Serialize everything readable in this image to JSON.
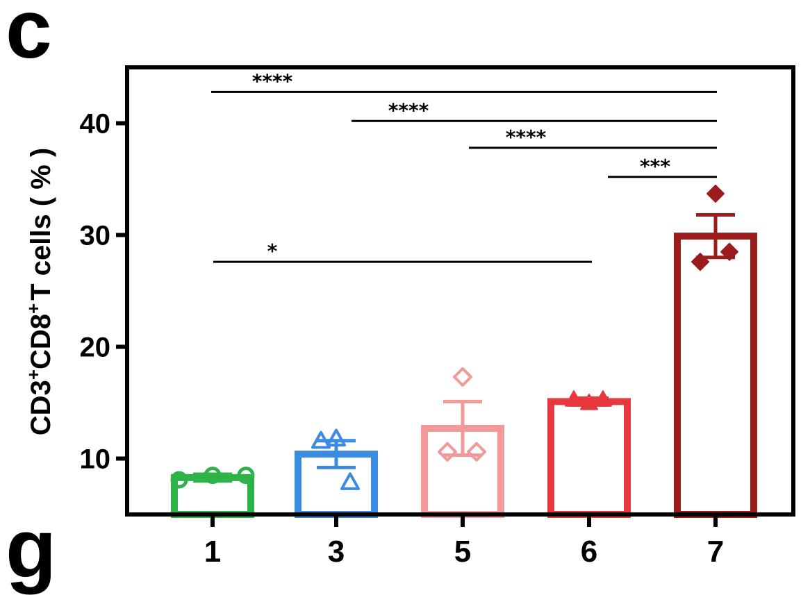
{
  "panel_labels": {
    "main": "c",
    "next": "g"
  },
  "chart_data": {
    "type": "bar",
    "categories": [
      "1",
      "3",
      "5",
      "6",
      "7"
    ],
    "values": [
      8.3,
      10.4,
      12.7,
      15.1,
      29.9
    ],
    "errors": [
      0.3,
      1.2,
      2.4,
      0.3,
      1.9
    ],
    "points": [
      [
        8.1,
        8.5,
        8.5
      ],
      [
        11.8,
        11.6,
        7.9
      ],
      [
        17.3,
        10.6,
        10.6
      ],
      [
        15.0,
        15.3,
        15.3
      ],
      [
        33.7,
        27.6,
        28.5
      ]
    ],
    "markers": [
      "circle",
      "triangle",
      "diamond-open",
      "triangle-filled",
      "diamond-filled"
    ],
    "colors": [
      "#2db34a",
      "#3b8be0",
      "#f29a9a",
      "#e8383d",
      "#9b1c1c"
    ],
    "ylabel": {
      "prefix": "CD3",
      "sup1": "+",
      "middle": "CD8",
      "sup2": "+",
      "suffix": "T cells ( % )"
    },
    "ylim": [
      5,
      45
    ],
    "yticks": [
      10,
      20,
      30,
      40
    ],
    "significance": [
      {
        "from": 0,
        "to": 4,
        "y": 42.8,
        "label": "****"
      },
      {
        "from": 1,
        "to": 4,
        "y": 40.2,
        "label": "****"
      },
      {
        "from": 2,
        "to": 4,
        "y": 37.8,
        "label": "****"
      },
      {
        "from": 3,
        "to": 4,
        "y": 35.2,
        "label": "***"
      },
      {
        "from": 0,
        "to": 3,
        "y": 27.6,
        "label": "*"
      }
    ]
  }
}
